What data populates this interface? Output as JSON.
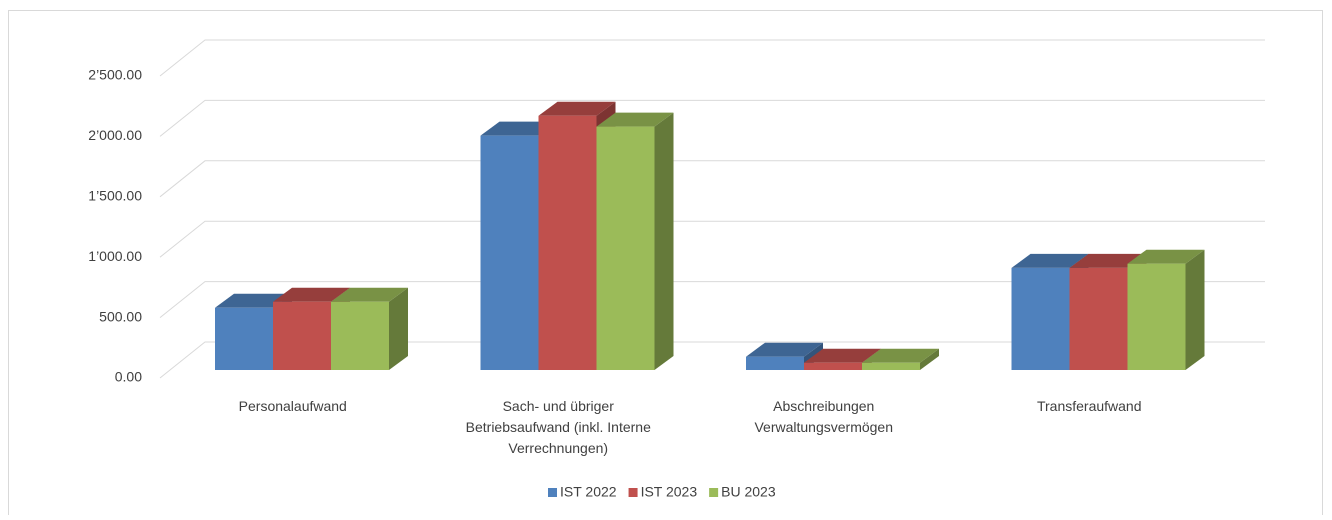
{
  "chart_data": {
    "type": "bar3d",
    "categories": [
      "Personalaufwand",
      "Sach- und übriger Betriebsaufwand (inkl. Interne Verrechnungen)",
      "Abschreibungen Verwaltungsvermögen",
      "Transferaufwand"
    ],
    "series": [
      {
        "name": "IST 2022",
        "color": "#4f81bd",
        "values": [
          515,
          1940,
          110,
          845
        ]
      },
      {
        "name": "IST 2023",
        "color": "#c0504d",
        "values": [
          565,
          2105,
          60,
          845
        ]
      },
      {
        "name": "BU 2023",
        "color": "#9bbb59",
        "values": [
          565,
          2015,
          60,
          880
        ]
      }
    ],
    "ylim": [
      0,
      2500
    ],
    "yticks": [
      {
        "value": 0,
        "label": "0.00"
      },
      {
        "value": 500,
        "label": "500.00"
      },
      {
        "value": 1000,
        "label": "1’000.00"
      },
      {
        "value": 1500,
        "label": "1’500.00"
      },
      {
        "value": 2000,
        "label": "2’000.00"
      },
      {
        "value": 2500,
        "label": "2’500.00"
      }
    ],
    "grid": true,
    "legend": "bottom"
  }
}
